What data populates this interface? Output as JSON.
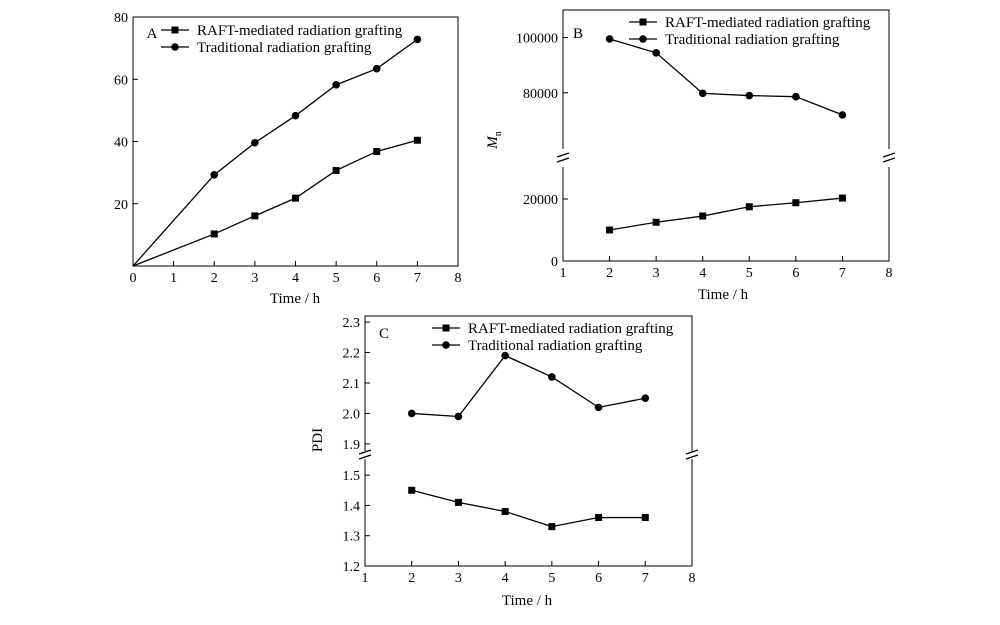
{
  "chart_data": [
    {
      "type": "line",
      "panel_label": "A",
      "xlabel": "Time / h",
      "ylabel": "",
      "xlim": [
        0,
        8
      ],
      "ylim": [
        0,
        80
      ],
      "xticks": [
        0,
        1,
        2,
        3,
        4,
        5,
        6,
        7,
        8
      ],
      "yticks": [
        20,
        40,
        60,
        80
      ],
      "legend_position": "top-right",
      "series": [
        {
          "name": "RAFT-mediated radiation grafting",
          "marker": "square",
          "x": [
            0,
            2,
            3,
            4,
            5,
            6,
            7
          ],
          "y": [
            0,
            10.3,
            16.1,
            21.8,
            30.7,
            36.8,
            40.4
          ]
        },
        {
          "name": "Traditional radiation grafting",
          "marker": "circle",
          "x": [
            0,
            2,
            3,
            4,
            5,
            6,
            7
          ],
          "y": [
            0,
            29.3,
            39.6,
            48.3,
            58.2,
            63.4,
            72.8
          ]
        }
      ]
    },
    {
      "type": "line",
      "panel_label": "B",
      "xlabel": "Time / h",
      "ylabel": "M",
      "ylabel_sub": "n",
      "xlim": [
        1,
        8
      ],
      "broken_axis": true,
      "ylim_lower": [
        0,
        30000
      ],
      "ylim_upper": [
        60000,
        110000
      ],
      "xticks": [
        1,
        2,
        3,
        4,
        5,
        6,
        7,
        8
      ],
      "yticks": [
        0,
        20000,
        80000,
        100000
      ],
      "legend_position": "top-right",
      "series": [
        {
          "name": "RAFT-mediated radiation grafting",
          "marker": "square",
          "x": [
            2,
            3,
            4,
            5,
            6,
            7
          ],
          "y": [
            10000,
            12500,
            14500,
            17500,
            18800,
            20300
          ]
        },
        {
          "name": "Traditional radiation grafting",
          "marker": "circle",
          "x": [
            2,
            3,
            4,
            5,
            6,
            7
          ],
          "y": [
            99500,
            94500,
            79800,
            79000,
            78600,
            72000
          ]
        }
      ]
    },
    {
      "type": "line",
      "panel_label": "C",
      "xlabel": "Time / h",
      "ylabel": "PDI",
      "xlim": [
        1,
        8
      ],
      "broken_axis": true,
      "ylim_lower": [
        1.2,
        1.55
      ],
      "ylim_upper": [
        1.88,
        2.32
      ],
      "xticks": [
        1,
        2,
        3,
        4,
        5,
        6,
        7,
        8
      ],
      "yticks": [
        1.2,
        1.3,
        1.4,
        1.5,
        1.9,
        2.0,
        2.1,
        2.2,
        2.3
      ],
      "legend_position": "top-right",
      "series": [
        {
          "name": "RAFT-mediated radiation grafting",
          "marker": "square",
          "x": [
            2,
            3,
            4,
            5,
            6,
            7
          ],
          "y": [
            1.45,
            1.41,
            1.38,
            1.33,
            1.36,
            1.36
          ]
        },
        {
          "name": "Traditional radiation grafting",
          "marker": "circle",
          "x": [
            2,
            3,
            4,
            5,
            6,
            7
          ],
          "y": [
            2.0,
            1.99,
            2.19,
            2.12,
            2.02,
            2.05
          ]
        }
      ]
    }
  ]
}
